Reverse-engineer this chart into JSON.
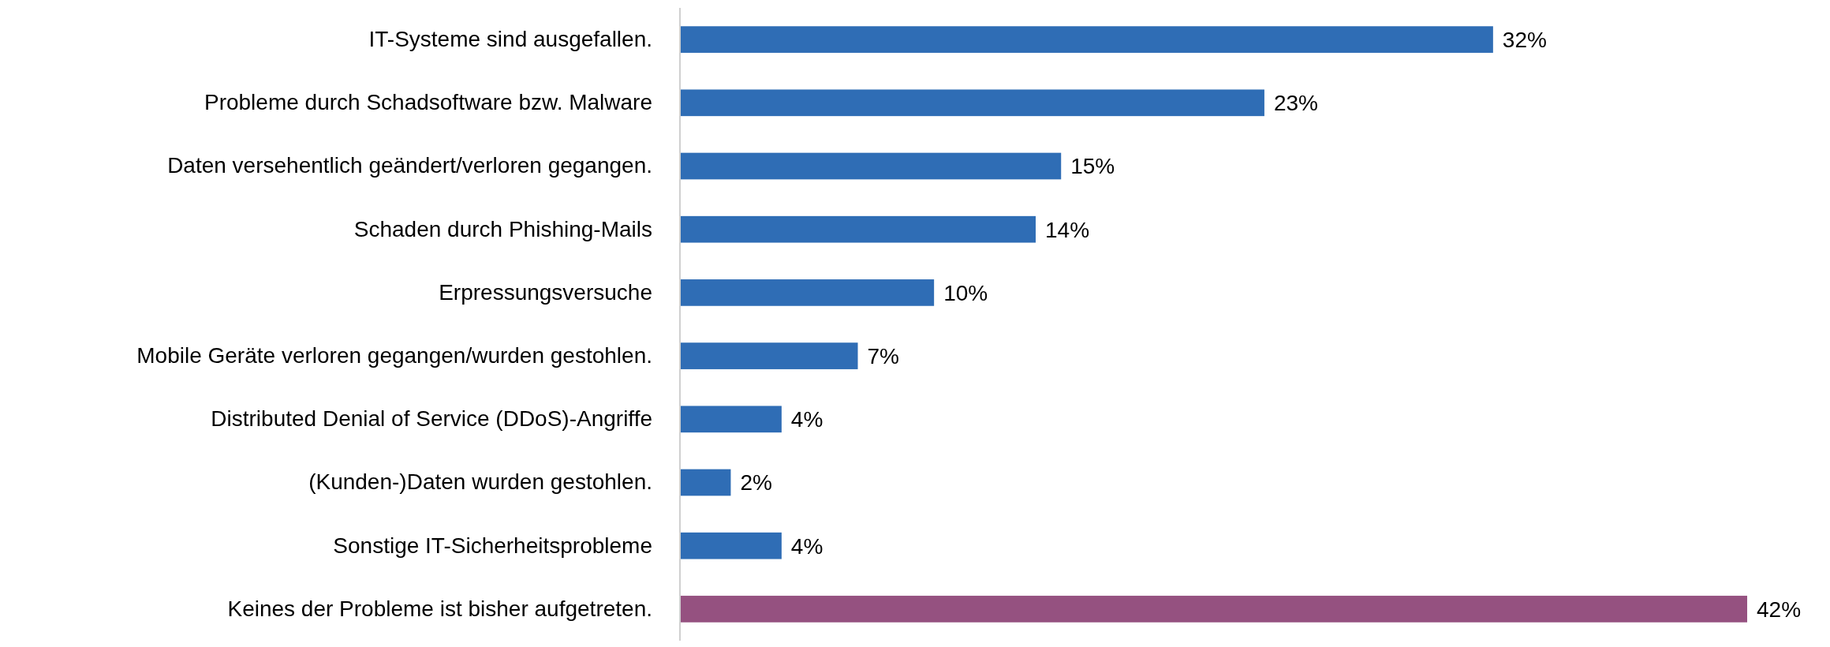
{
  "chart_data": {
    "type": "bar",
    "orientation": "horizontal",
    "categories": [
      "IT-Systeme sind ausgefallen.",
      "Probleme durch Schadsoftware bzw. Malware",
      "Daten versehentlich geändert/verloren gegangen.",
      "Schaden durch Phishing-Mails",
      "Erpressungsversuche",
      "Mobile Geräte verloren gegangen/wurden gestohlen.",
      "Distributed Denial of Service (DDoS)-Angriffe",
      "(Kunden-)Daten wurden gestohlen.",
      "Sonstige IT-Sicherheitsprobleme",
      "Keines der Probleme ist bisher aufgetreten."
    ],
    "values": [
      32,
      23,
      15,
      14,
      10,
      7,
      4,
      2,
      4,
      42
    ],
    "colors": [
      "#2f6db5",
      "#2f6db5",
      "#2f6db5",
      "#2f6db5",
      "#2f6db5",
      "#2f6db5",
      "#2f6db5",
      "#2f6db5",
      "#2f6db5",
      "#955180"
    ],
    "value_labels": [
      "32%",
      "23%",
      "15%",
      "14%",
      "10%",
      "7%",
      "4%",
      "2%",
      "4%",
      "42%"
    ]
  }
}
